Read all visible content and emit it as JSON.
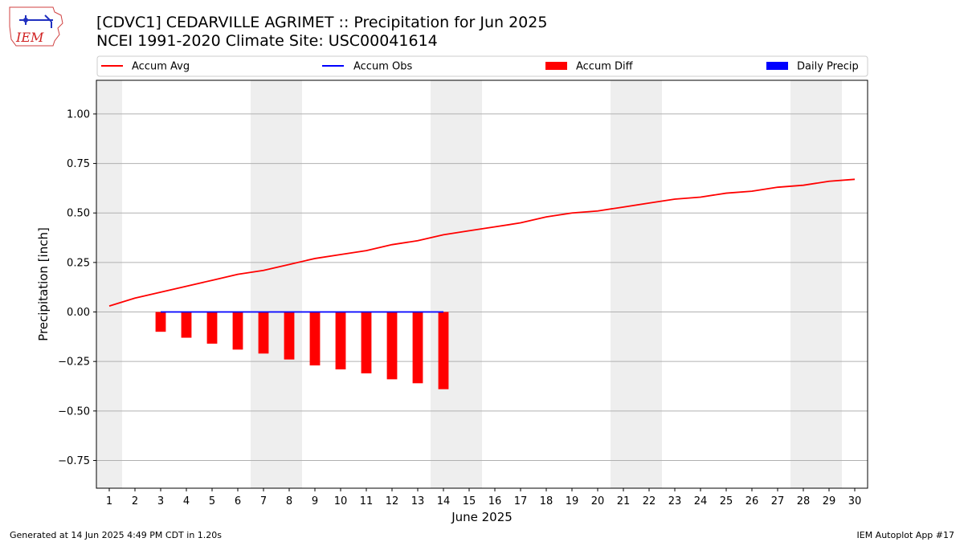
{
  "header": {
    "title_line1": "[CDVC1] CEDARVILLE AGRIMET :: Precipitation for Jun 2025",
    "title_line2": "NCEI 1991-2020 Climate Site: USC00041614",
    "logo_text": "IEM"
  },
  "footer": {
    "left": "Generated at 14 Jun 2025 4:49 PM CDT in 1.20s",
    "right": "IEM Autoplot App #17"
  },
  "colors": {
    "accum_avg": "#ff0000",
    "accum_obs": "#0000ff",
    "accum_diff": "#ff0000",
    "daily_precip": "#0000ff",
    "weekend_band": "#eeeeee",
    "grid": "#b0b0b0"
  },
  "chart_data": {
    "type": "line",
    "xlabel": "June 2025",
    "ylabel": "Precipitation [inch]",
    "xlim": [
      0.5,
      30.5
    ],
    "ylim": [
      -0.89,
      1.17
    ],
    "yticks": [
      1.0,
      0.75,
      0.5,
      0.25,
      0.0,
      -0.25,
      -0.5,
      -0.75
    ],
    "ytick_labels": [
      "1.00",
      "0.75",
      "0.50",
      "0.25",
      "0.00",
      "−0.25",
      "−0.50",
      "−0.75"
    ],
    "x": [
      1,
      2,
      3,
      4,
      5,
      6,
      7,
      8,
      9,
      10,
      11,
      12,
      13,
      14,
      15,
      16,
      17,
      18,
      19,
      20,
      21,
      22,
      23,
      24,
      25,
      26,
      27,
      28,
      29,
      30
    ],
    "weekend_days": [
      1,
      7,
      8,
      14,
      15,
      21,
      22,
      28,
      29
    ],
    "grid": "horizontal",
    "legend": {
      "placement": "top",
      "entries": [
        {
          "label": "Accum Avg",
          "kind": "line",
          "color": "#ff0000"
        },
        {
          "label": "Accum Obs",
          "kind": "line",
          "color": "#0000ff"
        },
        {
          "label": "Accum Diff",
          "kind": "bar",
          "color": "#ff0000"
        },
        {
          "label": "Daily Precip",
          "kind": "bar",
          "color": "#0000ff"
        }
      ]
    },
    "series": [
      {
        "name": "Accum Avg",
        "type": "line",
        "x": [
          1,
          2,
          3,
          4,
          5,
          6,
          7,
          8,
          9,
          10,
          11,
          12,
          13,
          14,
          15,
          16,
          17,
          18,
          19,
          20,
          21,
          22,
          23,
          24,
          25,
          26,
          27,
          28,
          29,
          30
        ],
        "values": [
          0.03,
          0.07,
          0.1,
          0.13,
          0.16,
          0.19,
          0.21,
          0.24,
          0.27,
          0.29,
          0.31,
          0.34,
          0.36,
          0.39,
          0.41,
          0.43,
          0.45,
          0.48,
          0.5,
          0.51,
          0.53,
          0.55,
          0.57,
          0.58,
          0.6,
          0.61,
          0.63,
          0.64,
          0.66,
          0.67
        ]
      },
      {
        "name": "Accum Obs",
        "type": "line",
        "x": [
          3,
          4,
          5,
          6,
          7,
          8,
          9,
          10,
          11,
          12,
          13,
          14
        ],
        "values": [
          0,
          0,
          0,
          0,
          0,
          0,
          0,
          0,
          0,
          0,
          0,
          0
        ]
      },
      {
        "name": "Accum Diff",
        "type": "bar",
        "x": [
          3,
          4,
          5,
          6,
          7,
          8,
          9,
          10,
          11,
          12,
          13,
          14
        ],
        "values": [
          -0.1,
          -0.13,
          -0.16,
          -0.19,
          -0.21,
          -0.24,
          -0.27,
          -0.29,
          -0.31,
          -0.34,
          -0.36,
          -0.39
        ]
      },
      {
        "name": "Daily Precip",
        "type": "bar",
        "x": [
          3,
          4,
          5,
          6,
          7,
          8,
          9,
          10,
          11,
          12,
          13,
          14
        ],
        "values": [
          0,
          0,
          0,
          0,
          0,
          0,
          0,
          0,
          0,
          0,
          0,
          0
        ]
      }
    ]
  }
}
